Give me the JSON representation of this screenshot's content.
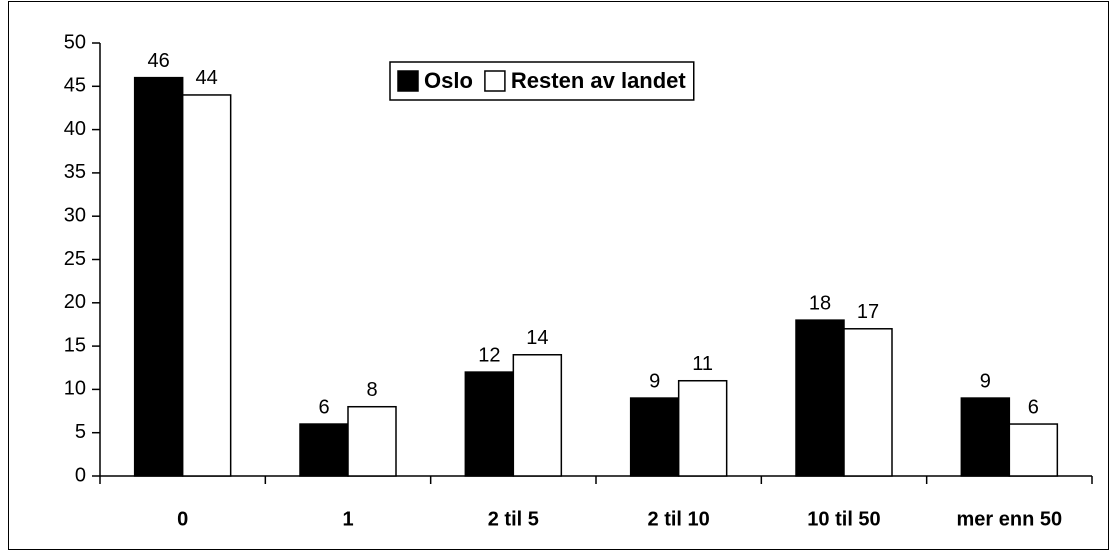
{
  "chart_data": {
    "type": "bar",
    "categories": [
      "0",
      "1",
      "2 til 5",
      "2 til 10",
      "10 til 50",
      "mer enn 50"
    ],
    "series": [
      {
        "name": "Oslo",
        "color": "#000000",
        "values": [
          46,
          6,
          12,
          9,
          18,
          9
        ]
      },
      {
        "name": "Resten av landet",
        "color": "#ffffff",
        "values": [
          44,
          8,
          14,
          11,
          17,
          6
        ]
      }
    ],
    "ylim": [
      0,
      50
    ],
    "yticks": [
      0,
      5,
      10,
      15,
      20,
      25,
      30,
      35,
      40,
      45,
      50
    ],
    "grid": false
  }
}
